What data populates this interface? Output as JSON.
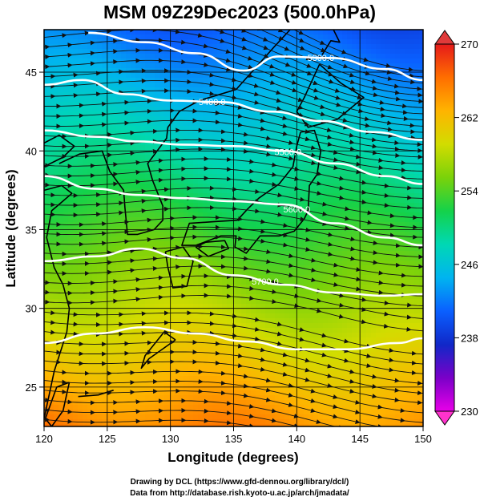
{
  "title": "MSM 09Z29Dec2023 (500.0hPa)",
  "xlabel": "Longitude (degrees)",
  "ylabel": "Latitude  (degrees)",
  "xticks": [
    120,
    125,
    130,
    135,
    140,
    145,
    150
  ],
  "yticks": [
    25,
    30,
    35,
    40,
    45
  ],
  "xrange": [
    120,
    150
  ],
  "yrange": [
    22.5,
    47.7
  ],
  "colorbar": {
    "ticks": [
      230,
      238,
      246,
      254,
      262,
      270
    ],
    "min": 230,
    "max": 270,
    "stops": [
      "#e800e8",
      "#7a00c8",
      "#1028c8",
      "#0a60ff",
      "#00b4f0",
      "#00d8b4",
      "#14d24a",
      "#7ad20a",
      "#d2dc00",
      "#ffb400",
      "#ff6e00",
      "#e61a1a"
    ]
  },
  "contours": [
    {
      "label": "5300.0",
      "label_lon": 141.9,
      "points": [
        [
          123.5,
          47.5
        ],
        [
          128,
          46.9
        ],
        [
          132,
          46.2
        ],
        [
          135.8,
          45.1
        ],
        [
          138.6,
          46.0
        ],
        [
          142.7,
          45.9
        ],
        [
          147,
          45.2
        ],
        [
          150,
          44.5
        ]
      ]
    },
    {
      "label": "5400.0",
      "label_lon": 133.3,
      "points": [
        [
          120,
          44.2
        ],
        [
          123,
          44.5
        ],
        [
          126.5,
          43.6
        ],
        [
          130,
          43.2
        ],
        [
          134,
          43.1
        ],
        [
          138,
          42.5
        ],
        [
          142,
          41.9
        ],
        [
          146,
          41.2
        ],
        [
          150,
          40.7
        ]
      ]
    },
    {
      "label": "5500.0",
      "label_lon": 139.3,
      "points": [
        [
          120,
          41.3
        ],
        [
          124,
          40.9
        ],
        [
          127.5,
          40.6
        ],
        [
          131,
          40.4
        ],
        [
          135,
          40.3
        ],
        [
          139,
          40.0
        ],
        [
          143,
          39.2
        ],
        [
          147,
          38.4
        ],
        [
          150,
          37.9
        ]
      ]
    },
    {
      "label": "5600.0",
      "label_lon": 140.0,
      "points": [
        [
          120,
          38.4
        ],
        [
          124,
          37.6
        ],
        [
          127.5,
          37.2
        ],
        [
          131,
          37.0
        ],
        [
          135,
          36.8
        ],
        [
          139,
          36.6
        ],
        [
          143,
          35.4
        ],
        [
          147,
          34.5
        ],
        [
          150,
          34.0
        ]
      ]
    },
    {
      "label": "5700.0",
      "label_lon": 137.5,
      "points": [
        [
          120,
          33.0
        ],
        [
          124,
          33.3
        ],
        [
          127.5,
          33.8
        ],
        [
          131,
          33.2
        ],
        [
          135,
          32.1
        ],
        [
          139,
          31.5
        ],
        [
          143,
          31.0
        ],
        [
          147,
          30.8
        ],
        [
          150,
          30.9
        ]
      ]
    },
    {
      "label": "",
      "label_lon": 0,
      "points": [
        [
          120,
          27.8
        ],
        [
          124,
          28.4
        ],
        [
          128,
          28.8
        ],
        [
          132,
          28.4
        ],
        [
          136,
          27.9
        ],
        [
          140,
          27.4
        ],
        [
          144,
          27.4
        ],
        [
          148,
          27.8
        ],
        [
          150,
          28.1
        ]
      ]
    }
  ],
  "coast": [
    [
      [
        141.8,
        45.5
      ],
      [
        143.5,
        44.3
      ],
      [
        145.3,
        43.4
      ],
      [
        143.2,
        42.0
      ],
      [
        140.9,
        41.5
      ],
      [
        140.0,
        42.5
      ],
      [
        140.6,
        43.4
      ],
      [
        141.8,
        45.5
      ]
    ],
    [
      [
        140.3,
        41.2
      ],
      [
        141.4,
        41.3
      ],
      [
        141.9,
        40.0
      ],
      [
        141.6,
        38.5
      ],
      [
        141.0,
        37.8
      ],
      [
        140.9,
        36.2
      ],
      [
        140.6,
        35.7
      ],
      [
        139.8,
        34.9
      ],
      [
        138.6,
        34.6
      ],
      [
        137.1,
        34.6
      ],
      [
        136.0,
        33.5
      ],
      [
        135.1,
        33.9
      ],
      [
        135.2,
        34.6
      ],
      [
        134.0,
        34.6
      ],
      [
        132.0,
        34.0
      ],
      [
        130.9,
        34.0
      ],
      [
        131.5,
        35.4
      ],
      [
        133.4,
        35.5
      ],
      [
        135.3,
        35.6
      ],
      [
        136.1,
        36.3
      ],
      [
        137.0,
        37.0
      ],
      [
        138.6,
        37.9
      ],
      [
        139.7,
        39.0
      ],
      [
        140.0,
        40.3
      ],
      [
        140.3,
        41.2
      ]
    ],
    [
      [
        132.0,
        33.9
      ],
      [
        133.0,
        33.3
      ],
      [
        134.6,
        33.8
      ],
      [
        134.3,
        34.3
      ],
      [
        132.8,
        34.2
      ],
      [
        132.0,
        33.9
      ]
    ],
    [
      [
        129.6,
        33.6
      ],
      [
        131.0,
        33.9
      ],
      [
        131.8,
        33.0
      ],
      [
        131.3,
        31.4
      ],
      [
        130.2,
        31.3
      ],
      [
        129.8,
        32.6
      ],
      [
        129.6,
        33.6
      ]
    ],
    [
      [
        122.0,
        25.3
      ],
      [
        121.0,
        25.0
      ],
      [
        120.1,
        23.0
      ],
      [
        120.6,
        22.5
      ],
      [
        121.5,
        23.5
      ],
      [
        122.0,
        25.3
      ]
    ],
    [
      [
        120.0,
        23.0
      ],
      [
        120.8,
        26.0
      ],
      [
        121.8,
        28.5
      ],
      [
        122.0,
        30.0
      ],
      [
        121.5,
        31.5
      ],
      [
        120.8,
        32.6
      ],
      [
        120.2,
        34.5
      ],
      [
        120.6,
        36.2
      ],
      [
        122.2,
        37.3
      ],
      [
        121.4,
        37.8
      ],
      [
        120.0,
        37.5
      ]
    ],
    [
      [
        120.0,
        39.0
      ],
      [
        121.5,
        39.6
      ],
      [
        122.4,
        40.3
      ],
      [
        121.2,
        41.0
      ],
      [
        120.0,
        40.5
      ]
    ],
    [
      [
        121.2,
        39.2
      ],
      [
        122.8,
        39.8
      ],
      [
        124.6,
        40.0
      ],
      [
        125.2,
        38.7
      ],
      [
        126.3,
        37.5
      ],
      [
        126.4,
        36.4
      ],
      [
        126.6,
        34.7
      ],
      [
        127.4,
        34.7
      ],
      [
        128.7,
        35.0
      ],
      [
        129.4,
        35.6
      ],
      [
        129.4,
        36.5
      ],
      [
        128.6,
        38.1
      ],
      [
        128.2,
        39.2
      ],
      [
        129.7,
        40.8
      ],
      [
        129.8,
        41.5
      ],
      [
        130.7,
        42.5
      ],
      [
        132.3,
        43.2
      ],
      [
        135.2,
        43.9
      ],
      [
        138.2,
        46.6
      ],
      [
        140.4,
        48.5
      ]
    ],
    [
      [
        142.0,
        46.1
      ],
      [
        142.7,
        47.0
      ],
      [
        143.4,
        46.9
      ],
      [
        142.9,
        47.7
      ]
    ],
    [
      [
        130.4,
        28.0
      ],
      [
        129.5,
        28.5
      ],
      [
        128.0,
        27.0
      ],
      [
        127.7,
        26.2
      ],
      [
        128.3,
        26.8
      ],
      [
        130.4,
        28.0
      ]
    ],
    [
      [
        122.7,
        24.4
      ],
      [
        124.3,
        24.5
      ],
      [
        125.5,
        24.8
      ]
    ]
  ],
  "credits": [
    "Drawing by DCL (https://www.gfd-dennou.org/library/dcl/)",
    "Data from http://database.rish.kyoto-u.ac.jp/arch/jmadata/"
  ]
}
